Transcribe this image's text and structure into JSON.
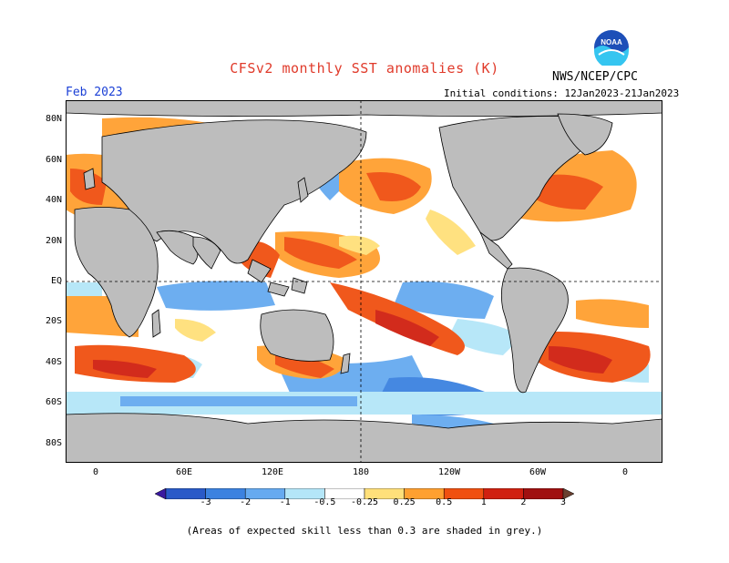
{
  "header": {
    "title": "CFSv2 monthly SST anomalies (K)",
    "agency": "NWS/NCEP/CPC",
    "month": "Feb 2023",
    "initial_conditions": "Initial conditions: 12Jan2023-21Jan2023",
    "logo_text": "NOAA"
  },
  "axes": {
    "lat_labels": [
      "80N",
      "60N",
      "40N",
      "20N",
      "EQ",
      "20S",
      "40S",
      "60S",
      "80S"
    ],
    "lon_labels": [
      "0",
      "60E",
      "120E",
      "180",
      "120W",
      "60W",
      "0"
    ]
  },
  "colorbar": {
    "labels": [
      "-3",
      "-2",
      "-1",
      "-0.5",
      "-0.25",
      "0.25",
      "0.5",
      "1",
      "2",
      "3"
    ],
    "colors": [
      "#3a1aa0",
      "#2a5ac8",
      "#3c82e0",
      "#66aaf0",
      "#b4e6f8",
      "#ffffff",
      "#ffe07a",
      "#ffa030",
      "#f05010",
      "#d02010",
      "#a01010",
      "#6a4030"
    ]
  },
  "colors": {
    "land": "#bdbdbd",
    "ocean_neutral": "#ffffff",
    "title": "#e03a2a",
    "month": "#1a3fd6"
  },
  "footnote": "(Areas of expected skill less than 0.3 are shaded in grey.)"
}
